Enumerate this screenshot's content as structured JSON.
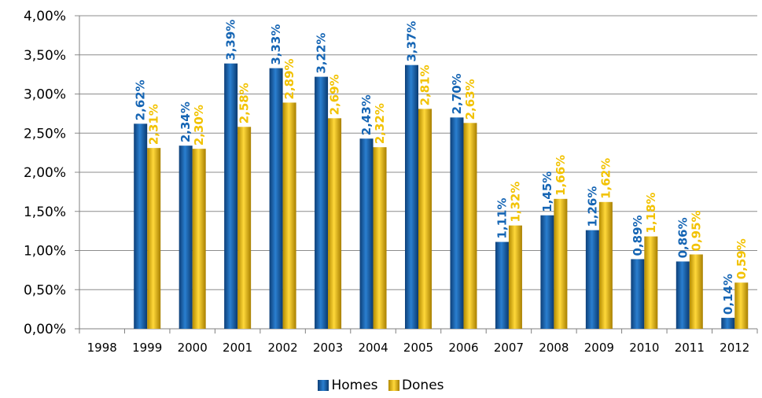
{
  "chart_data": {
    "type": "bar",
    "title": "",
    "xlabel": "",
    "ylabel": "",
    "categories": [
      "1998",
      "1999",
      "2000",
      "2001",
      "2002",
      "2003",
      "2004",
      "2005",
      "2006",
      "2007",
      "2008",
      "2009",
      "2010",
      "2011",
      "2012"
    ],
    "series": [
      {
        "name": "Homes",
        "color": "#1565b4",
        "values": [
          null,
          2.62,
          2.34,
          3.39,
          3.33,
          3.22,
          2.43,
          3.37,
          2.7,
          1.11,
          1.45,
          1.26,
          0.89,
          0.86,
          0.14
        ],
        "labels": [
          "",
          "2,62%",
          "2,34%",
          "3,39%",
          "3,33%",
          "3,22%",
          "2,43%",
          "3,37%",
          "2,70%",
          "1,11%",
          "1,45%",
          "1,26%",
          "0,89%",
          "0,86%",
          "0,14%"
        ]
      },
      {
        "name": "Dones",
        "color": "#f2c200",
        "values": [
          null,
          2.31,
          2.3,
          2.58,
          2.89,
          2.69,
          2.32,
          2.81,
          2.63,
          1.32,
          1.66,
          1.62,
          1.18,
          0.95,
          0.59
        ],
        "labels": [
          "",
          "2,31%",
          "2,30%",
          "2,58%",
          "2,89%",
          "2,69%",
          "2,32%",
          "2,81%",
          "2,63%",
          "1,32%",
          "1,66%",
          "1,62%",
          "1,18%",
          "0,95%",
          "0,59%"
        ]
      }
    ],
    "ylim": [
      0,
      4
    ],
    "yticks": [
      "0,00%",
      "0,50%",
      "1,00%",
      "1,50%",
      "2,00%",
      "2,50%",
      "3,00%",
      "3,50%",
      "4,00%"
    ],
    "grid": true,
    "legend_position": "bottom"
  },
  "legend": {
    "homes": "Homes",
    "dones": "Dones"
  }
}
